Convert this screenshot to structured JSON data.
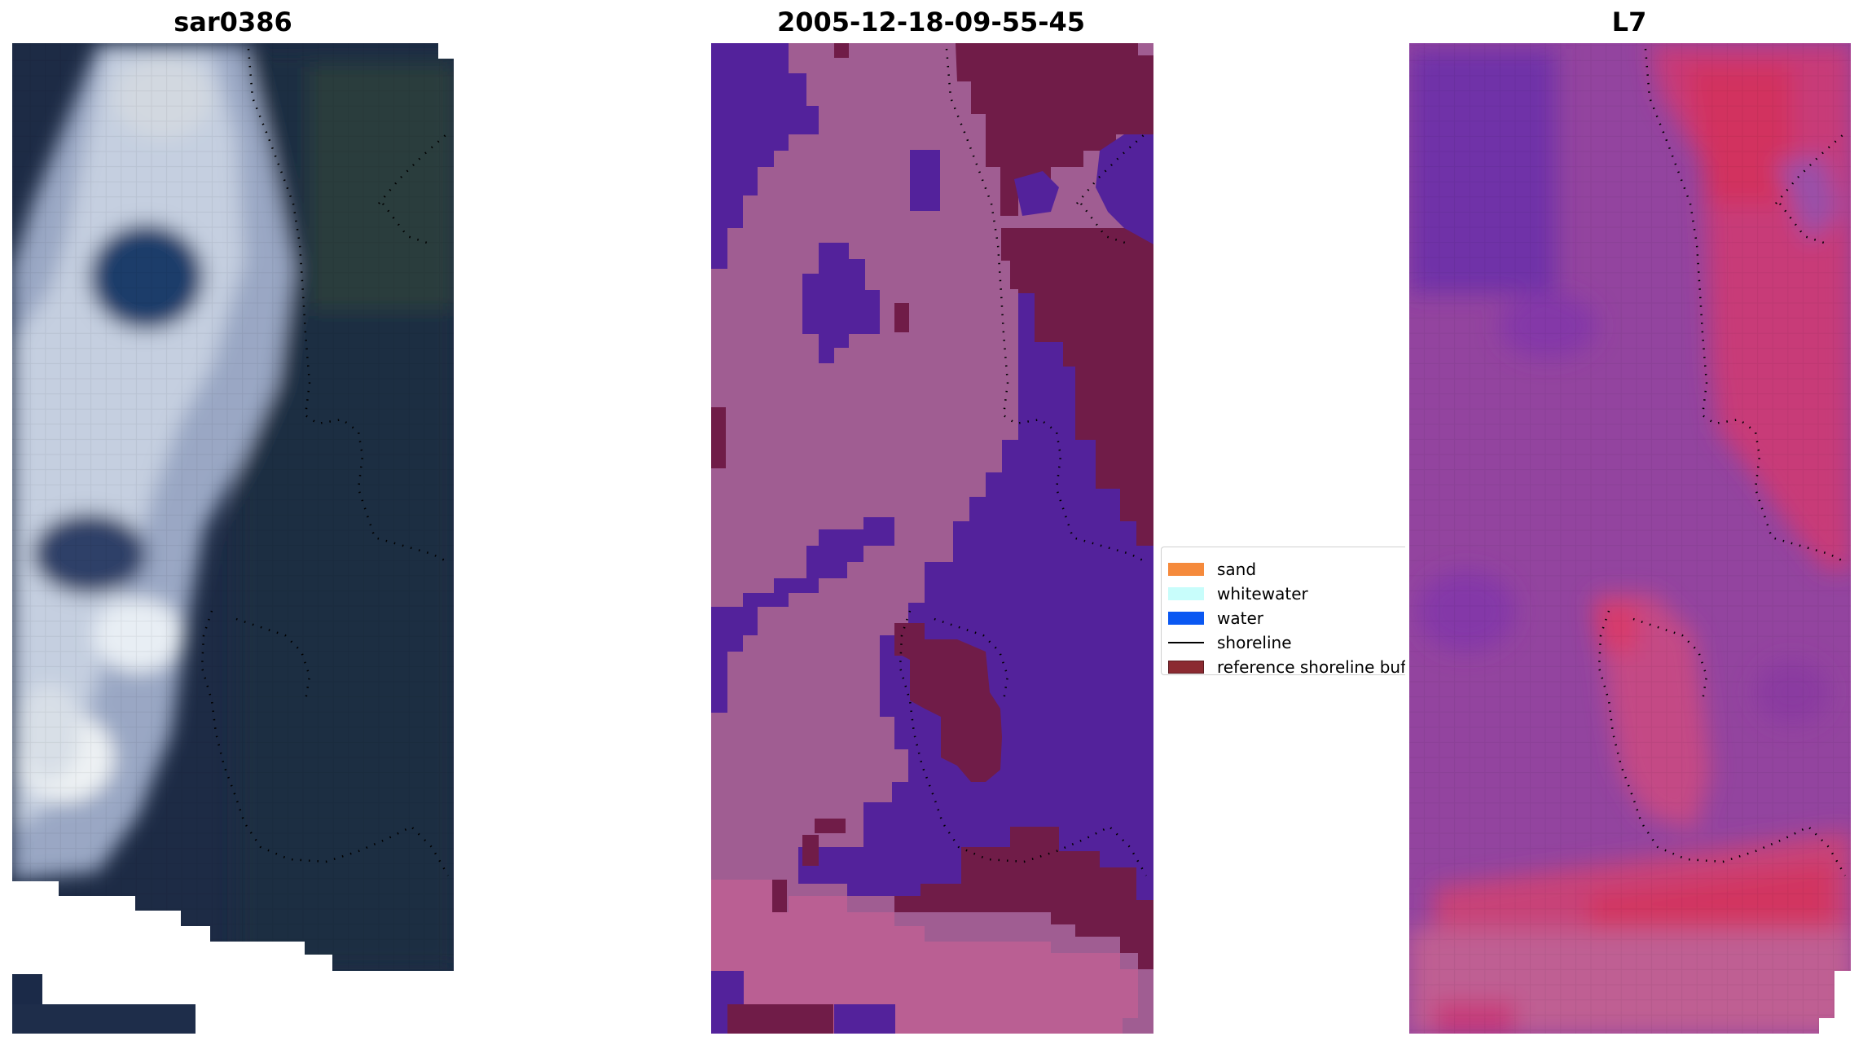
{
  "titles": {
    "left": "sar0386",
    "middle": "2005-12-18-09-55-45",
    "right": "L7"
  },
  "legend": {
    "items": [
      {
        "label": "sand",
        "color": "#f58a3c",
        "kind": "patch"
      },
      {
        "label": "whitewater",
        "color": "#c8fdfb",
        "kind": "patch"
      },
      {
        "label": "water",
        "color": "#0a58f2",
        "kind": "patch"
      },
      {
        "label": "shoreline",
        "color": "#000000",
        "kind": "line"
      },
      {
        "label": "reference shoreline buffer",
        "color": "#8b2a31",
        "kind": "patch"
      }
    ]
  },
  "colors": {
    "rgb_dark": "#1d2d48",
    "rgb_bright": "#c5cfe0",
    "class_mauve": "#a05d92",
    "class_purple": "#53229b",
    "class_maroon": "#701c48",
    "class_pink": "#ba5f93",
    "index_violet": "#8a3aa8",
    "index_magenta": "#c83a78",
    "index_pink": "#bf5e93"
  }
}
